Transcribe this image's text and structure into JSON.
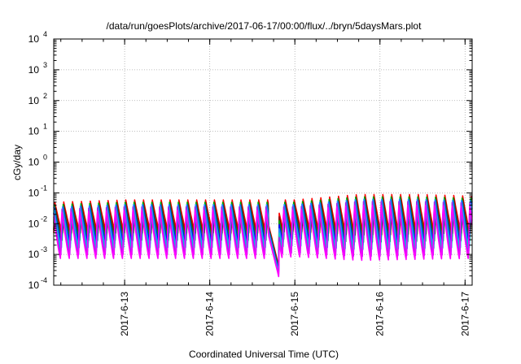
{
  "chart_data": {
    "type": "line",
    "title": "/data/run/goesPlots/archive/2017-06-17/00:00/flux/../bryn/5daysMars.plot",
    "xlabel": "Coordinated Universal Time (UTC)",
    "ylabel": "cGy/day",
    "yscale": "log",
    "ylim": [
      0.0001,
      10000
    ],
    "xlim": [
      "2017-06-12 04:00",
      "2017-06-17 02:00"
    ],
    "grid": true,
    "y_ticks": [
      {
        "base": "10",
        "exp": "-4"
      },
      {
        "base": "10",
        "exp": "-3"
      },
      {
        "base": "10",
        "exp": "-2"
      },
      {
        "base": "10",
        "exp": "-1"
      },
      {
        "base": "10",
        "exp": "0"
      },
      {
        "base": "10",
        "exp": "1"
      },
      {
        "base": "10",
        "exp": "2"
      },
      {
        "base": "10",
        "exp": "3"
      },
      {
        "base": "10",
        "exp": "4"
      }
    ],
    "x_ticks": [
      "2017-6-13",
      "2017-6-14",
      "2017-6-15",
      "2017-6-16",
      "2017-6-17"
    ],
    "x_tick_values": [
      "2017-06-13",
      "2017-06-14",
      "2017-06-15",
      "2017-06-16",
      "2017-06-17"
    ],
    "x_minor_tick_hours": 6,
    "oscillation_period_hours": 2.5,
    "series_colors": [
      "#ff0000",
      "#8b0000",
      "#00aa00",
      "#0000ff",
      "#1e90ff",
      "#00cccc",
      "#a020f0",
      "#ff00ff"
    ],
    "envelope": {
      "peak": [
        {
          "t": "2017-06-12 04:00",
          "v": 0.05
        },
        {
          "t": "2017-06-13 00:00",
          "v": 0.06
        },
        {
          "t": "2017-06-14 00:00",
          "v": 0.06
        },
        {
          "t": "2017-06-14 16:00",
          "v": 0.06
        },
        {
          "t": "2017-06-15 00:00",
          "v": 0.06
        },
        {
          "t": "2017-06-15 18:00",
          "v": 0.09
        },
        {
          "t": "2017-06-16 12:00",
          "v": 0.09
        },
        {
          "t": "2017-06-17 02:00",
          "v": 0.08
        }
      ],
      "trough": [
        {
          "t": "2017-06-12 04:00",
          "v": 0.0007
        },
        {
          "t": "2017-06-14 00:00",
          "v": 0.0007
        },
        {
          "t": "2017-06-14 16:00",
          "v": 0.0007
        },
        {
          "t": "2017-06-15 00:00",
          "v": 0.0008
        },
        {
          "t": "2017-06-15 18:00",
          "v": 0.0006
        },
        {
          "t": "2017-06-17 02:00",
          "v": 0.0007
        }
      ]
    },
    "dropout": {
      "start": "2017-06-14 16:30",
      "end": "2017-06-14 19:30",
      "start_value": 0.01,
      "end_value": 0.0004
    }
  }
}
